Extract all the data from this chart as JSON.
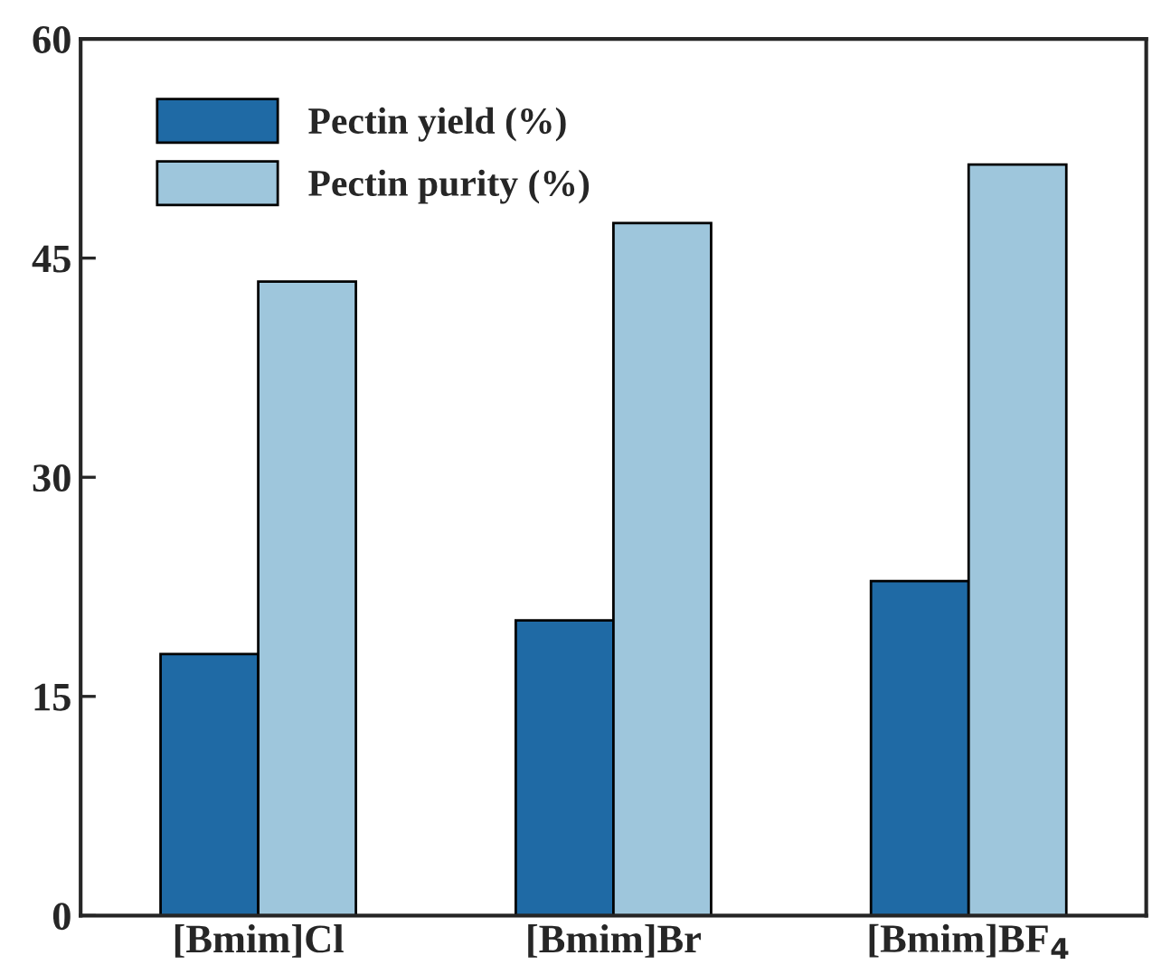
{
  "chart_data": {
    "type": "bar",
    "categories": [
      "[Bmim]Cl",
      "[Bmim]Br",
      "[Bmim]BF$_{4}$"
    ],
    "series": [
      {
        "name": "Pectin yield (%)",
        "color": "#1f6aa5",
        "values": [
          17.9,
          20.2,
          22.9
        ]
      },
      {
        "name": "Pectin purity (%)",
        "color": "#9ec6dc",
        "values": [
          43.4,
          47.4,
          51.4
        ]
      }
    ],
    "ylim": [
      0,
      60
    ],
    "yticks": [
      0,
      15,
      30,
      45,
      60
    ],
    "grid": false,
    "legend": "top left"
  }
}
